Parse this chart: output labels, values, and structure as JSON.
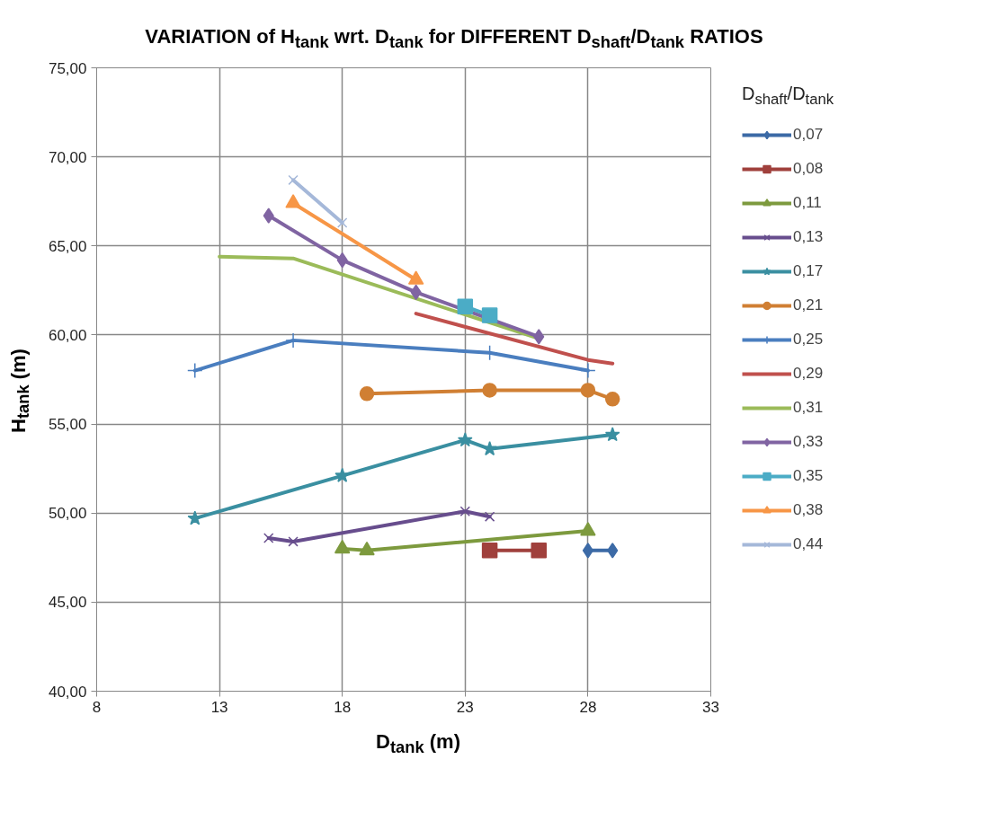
{
  "chart_data": {
    "type": "line",
    "title": "VARIATION of H$_{tank}$ wrt. D$_{tank}$ for DIFFERENT D$_{shaft}$/D$_{tank}$ RATIOS",
    "xlabel": "D$_{tank}$ (m)",
    "ylabel": "H$_{tank}$ (m)",
    "legend_title": "D$_{shaft}$/D$_{tank}$",
    "xlim": [
      8,
      33
    ],
    "xticks": [
      8,
      13,
      18,
      23,
      28,
      33
    ],
    "ylim": [
      40,
      75
    ],
    "yticks": [
      {
        "value": 40,
        "label": "40,00"
      },
      {
        "value": 45,
        "label": "45,00"
      },
      {
        "value": 50,
        "label": "50,00"
      },
      {
        "value": 55,
        "label": "55,00"
      },
      {
        "value": 60,
        "label": "60,00"
      },
      {
        "value": 65,
        "label": "65,00"
      },
      {
        "value": 70,
        "label": "70,00"
      },
      {
        "value": 75,
        "label": "75,00"
      }
    ],
    "grid": true,
    "legend": "right",
    "line_style": "solid",
    "series": [
      {
        "name": "0,07",
        "color": "#3c6aa6",
        "marker": "diamond",
        "x": [
          28,
          29
        ],
        "values": [
          47.9,
          47.9
        ]
      },
      {
        "name": "0,08",
        "color": "#a0403c",
        "marker": "square",
        "x": [
          24,
          26
        ],
        "values": [
          47.9,
          47.9
        ]
      },
      {
        "name": "0,11",
        "color": "#7d9a3e",
        "marker": "triangle",
        "x": [
          18,
          19,
          28
        ],
        "values": [
          48.0,
          47.9,
          49.0
        ]
      },
      {
        "name": "0,13",
        "color": "#674d8d",
        "marker": "cross",
        "x": [
          15,
          16,
          23,
          24
        ],
        "values": [
          48.6,
          48.4,
          50.1,
          49.8
        ]
      },
      {
        "name": "0,17",
        "color": "#3a8fa1",
        "marker": "star",
        "x": [
          12,
          18,
          23,
          24,
          29
        ],
        "values": [
          49.7,
          52.1,
          54.1,
          53.6,
          54.4
        ]
      },
      {
        "name": "0,21",
        "color": "#d07f33",
        "marker": "circle",
        "x": [
          19,
          24,
          28,
          29
        ],
        "values": [
          56.7,
          56.9,
          56.9,
          56.4
        ]
      },
      {
        "name": "0,25",
        "color": "#4a7ebf",
        "marker": "plus",
        "x": [
          12,
          16,
          24,
          28
        ],
        "values": [
          58.0,
          59.7,
          59.0,
          58.0
        ]
      },
      {
        "name": "0,29",
        "color": "#c0504d",
        "marker": "none",
        "x": [
          21,
          28,
          29
        ],
        "values": [
          61.2,
          58.6,
          58.4
        ]
      },
      {
        "name": "0,31",
        "color": "#9bbb59",
        "marker": "none",
        "x": [
          13,
          16,
          26
        ],
        "values": [
          64.4,
          64.3,
          59.8
        ]
      },
      {
        "name": "0,33",
        "color": "#8064a2",
        "marker": "diamond",
        "x": [
          15,
          18,
          21,
          26
        ],
        "values": [
          66.7,
          64.2,
          62.4,
          59.9
        ]
      },
      {
        "name": "0,35",
        "color": "#4bacc6",
        "marker": "square",
        "x": [
          23,
          24
        ],
        "values": [
          61.6,
          61.1
        ]
      },
      {
        "name": "0,38",
        "color": "#f79646",
        "marker": "triangle",
        "x": [
          16,
          21
        ],
        "values": [
          67.4,
          63.1
        ]
      },
      {
        "name": "0,44",
        "color": "#a5b8d9",
        "marker": "cross",
        "x": [
          16,
          18
        ],
        "values": [
          68.7,
          66.3
        ]
      }
    ]
  }
}
